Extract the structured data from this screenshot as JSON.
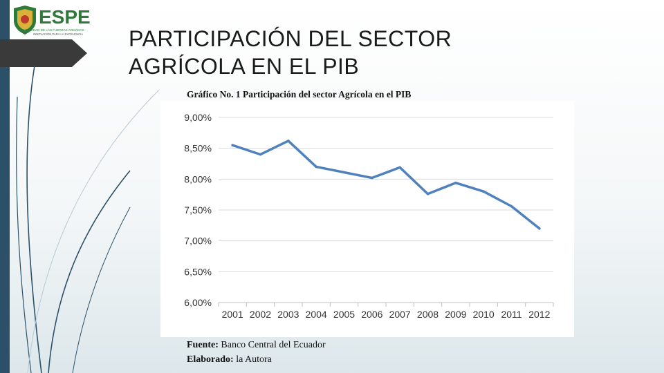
{
  "logo": {
    "name": "ESPE",
    "tagline_top": "UNIVERSIDAD DE LAS FUERZAS ARMADAS",
    "tagline_bottom": "INNOVACIÓN PARA LA EXCELENCIA"
  },
  "title": {
    "line1": "PARTICIPACIÓN DEL SECTOR",
    "line2": "AGRÍCOLA EN EL PIB"
  },
  "colors": {
    "accent": "#2c5068",
    "line": "#4f81bd",
    "grid": "#d9d9d9"
  },
  "chart_data": {
    "type": "line",
    "title": "Gráfico No. 1 Participación del sector Agrícola en el PIB",
    "xlabel": "",
    "ylabel": "",
    "categories": [
      "2001",
      "2002",
      "2003",
      "2004",
      "2005",
      "2006",
      "2007",
      "2008",
      "2009",
      "2010",
      "2011",
      "2012"
    ],
    "series": [
      {
        "name": "Participación",
        "values": [
          8.55,
          8.4,
          8.62,
          8.2,
          8.11,
          8.02,
          8.19,
          7.76,
          7.94,
          7.8,
          7.56,
          7.2
        ]
      }
    ],
    "y_ticks": [
      "6,00%",
      "6,50%",
      "7,00%",
      "7,50%",
      "8,00%",
      "8,50%",
      "9,00%"
    ],
    "ylim": [
      6.0,
      9.0
    ]
  },
  "source": {
    "label1": "Fuente:",
    "value1": "Banco Central del Ecuador",
    "label2": "Elaborado:",
    "value2": "la Autora"
  }
}
